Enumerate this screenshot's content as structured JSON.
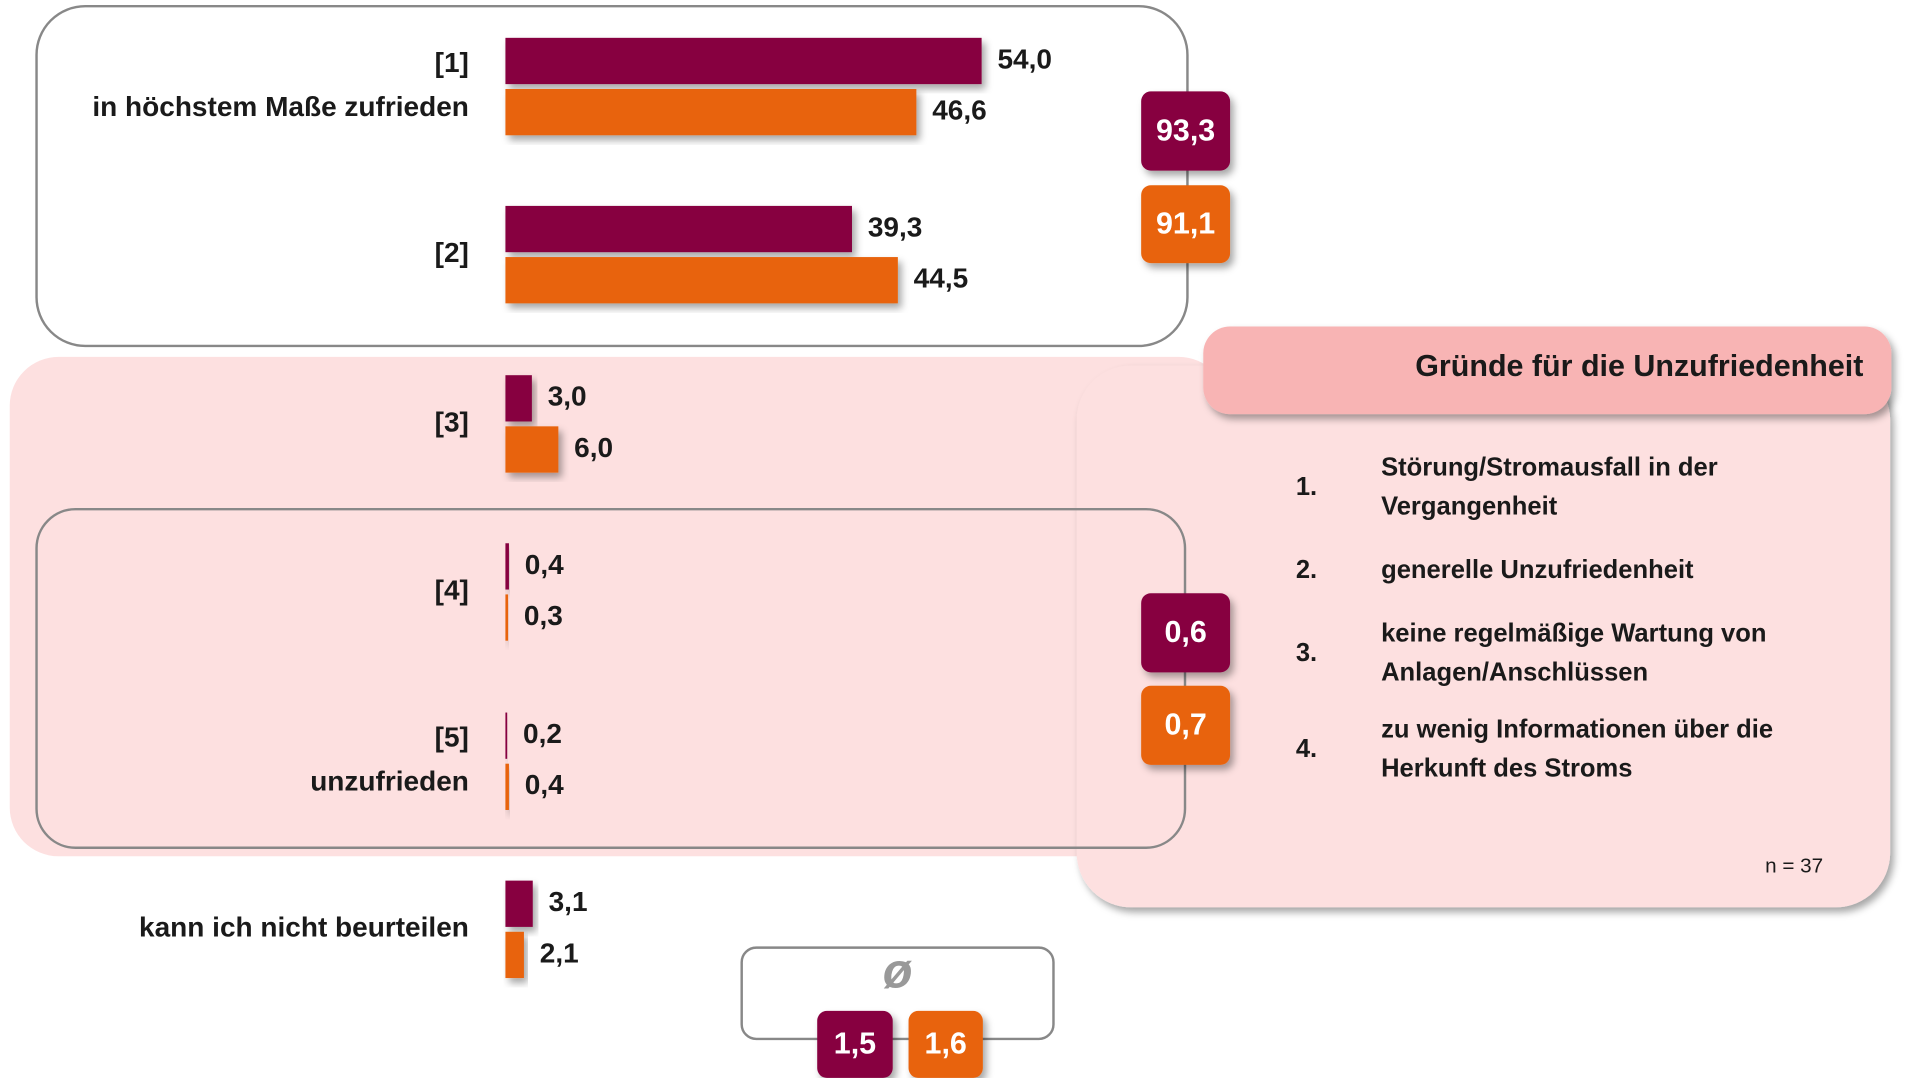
{
  "chart_data": {
    "type": "bar",
    "categories": [
      [
        "[1]",
        "in höchstem Maße zufrieden"
      ],
      [
        "[2]"
      ],
      [
        "[3]"
      ],
      [
        "[4]"
      ],
      [
        "[5]",
        "unzufrieden"
      ],
      [
        "kann ich nicht beurteilen"
      ]
    ],
    "series": [
      {
        "color": "#870040",
        "values": [
          54.0,
          39.3,
          3.0,
          0.4,
          0.2,
          3.1
        ],
        "value_labels": [
          "54,0",
          "39,3",
          "3,0",
          "0,4",
          "0,2",
          "3,1"
        ]
      },
      {
        "color": "#e8630a",
        "values": [
          46.6,
          44.5,
          6.0,
          0.3,
          0.4,
          2.1
        ],
        "value_labels": [
          "46,6",
          "44,5",
          "6,0",
          "0,3",
          "0,4",
          "2,1"
        ]
      }
    ],
    "top_two": {
      "values": [
        93.3,
        91.1
      ],
      "value_labels": [
        "93,3",
        "91,1"
      ]
    },
    "bottom_two": {
      "values": [
        0.6,
        0.7
      ],
      "value_labels": [
        "0,6",
        "0,7"
      ]
    },
    "mean": {
      "label": "ø",
      "values": [
        1.5,
        1.6
      ],
      "value_labels": [
        "1,5",
        "1,6"
      ]
    },
    "reasons": {
      "title": "Gründe für die Unzufriedenheit",
      "items": [
        {
          "number": "1.",
          "lines": [
            "Störung/Stromausfall in der",
            "Vergangenheit"
          ]
        },
        {
          "number": "2.",
          "lines": [
            "generelle Unzufriedenheit"
          ]
        },
        {
          "number": "3.",
          "lines": [
            "keine regelmäßige Wartung von",
            "Anlagen/Anschlüssen"
          ]
        },
        {
          "number": "4.",
          "lines": [
            "zu wenig Informationen über die",
            "Herkunft des Stroms"
          ]
        }
      ],
      "note": "n = 37"
    }
  }
}
